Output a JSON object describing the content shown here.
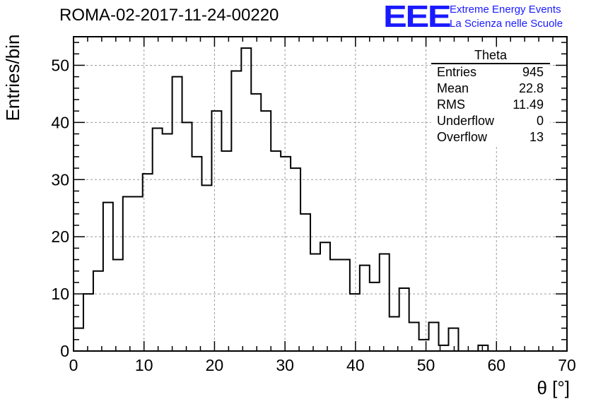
{
  "header": {
    "title": "ROMA-02-2017-11-24-00220",
    "logo": "EEE",
    "logo_line1": "Extreme Energy Events",
    "logo_line2": "La Scienza nelle Scuole"
  },
  "stats_box": {
    "name": "Theta",
    "rows": [
      {
        "label": "Entries",
        "value": "945"
      },
      {
        "label": "Mean",
        "value": "22.8"
      },
      {
        "label": "RMS",
        "value": "11.49"
      },
      {
        "label": "Underflow",
        "value": "0"
      },
      {
        "label": "Overflow",
        "value": "13"
      }
    ]
  },
  "chart_data": {
    "type": "bar",
    "subtype": "histogram-step",
    "xlabel": "θ [°]",
    "ylabel": "Entries/bin",
    "xlim": [
      0,
      70
    ],
    "ylim": [
      0,
      55
    ],
    "xticks": [
      0,
      10,
      20,
      30,
      40,
      50,
      60,
      70
    ],
    "yticks": [
      0,
      10,
      20,
      30,
      40,
      50
    ],
    "bin_width": 1.4,
    "bin_edges_start": 0,
    "values": [
      4,
      10,
      14,
      26,
      16,
      27,
      27,
      31,
      39,
      38,
      48,
      40,
      34,
      29,
      42,
      35,
      49,
      53,
      45,
      42,
      35,
      34,
      32,
      24,
      17,
      19,
      16,
      16,
      10,
      15,
      12,
      17,
      6,
      11,
      5,
      2,
      5,
      1,
      4,
      0,
      0,
      1,
      0,
      0,
      0,
      0,
      0,
      0,
      0,
      0
    ],
    "grid": true,
    "line_color": "#000000"
  }
}
